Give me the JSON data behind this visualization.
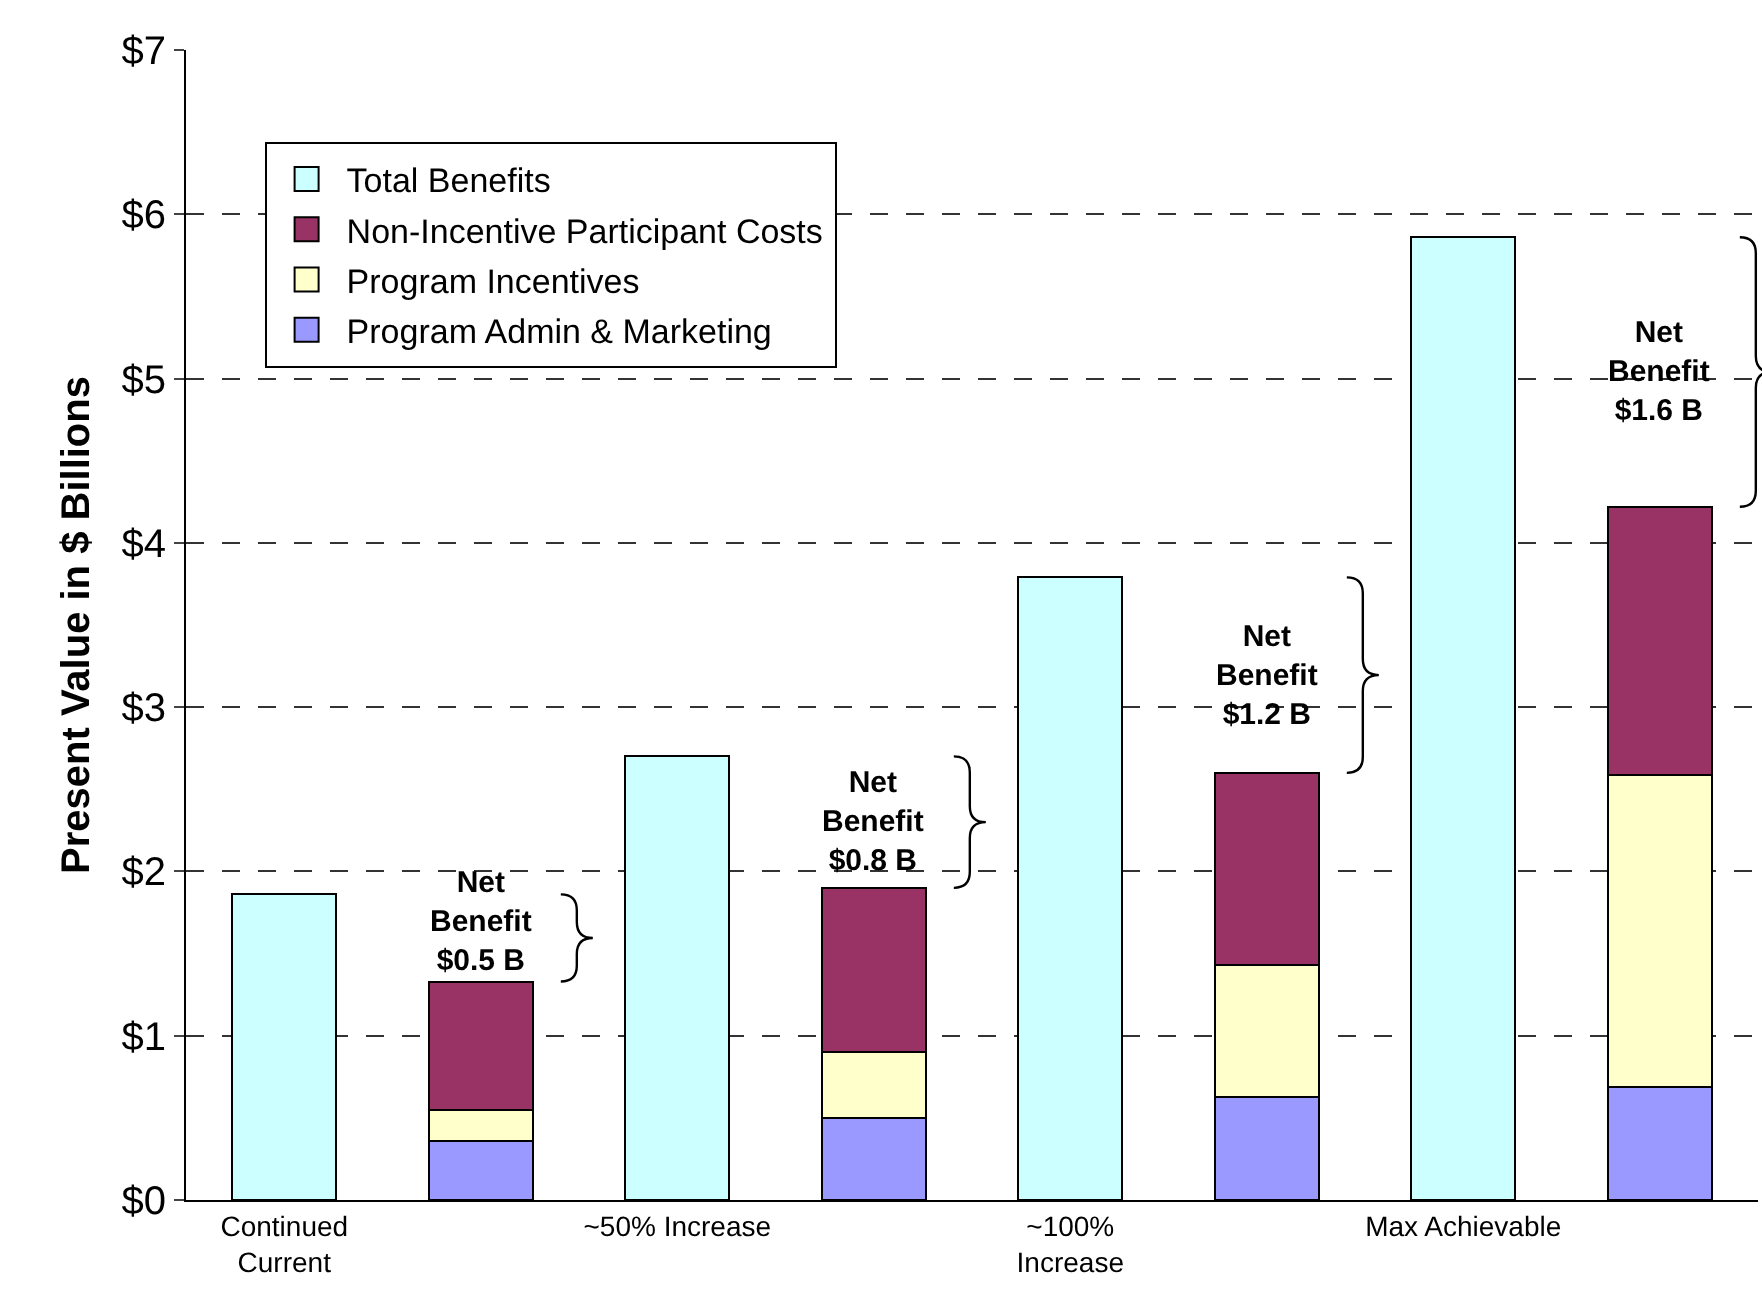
{
  "chart_data": {
    "type": "bar",
    "stacked": true,
    "ylabel": "Present Value in $ Billions",
    "categories": [
      "Continued\nCurrent",
      null,
      "~50% Increase",
      null,
      "~100%\nIncrease",
      null,
      "Max Achievable",
      null
    ],
    "series": [
      {
        "name": "Total Benefits",
        "color": "#ccffff",
        "values": [
          1.86,
          null,
          2.7,
          null,
          3.79,
          null,
          5.86,
          null
        ]
      },
      {
        "name": "Program Admin & Marketing",
        "color": "#9999ff",
        "values": [
          null,
          0.36,
          null,
          0.5,
          null,
          0.63,
          null,
          0.69
        ]
      },
      {
        "name": "Program Incentives",
        "color": "#ffffcc",
        "values": [
          null,
          0.19,
          null,
          0.4,
          null,
          0.8,
          null,
          1.9
        ]
      },
      {
        "name": "Non-Incentive Participant Costs",
        "color": "#993366",
        "values": [
          null,
          0.78,
          null,
          1.0,
          null,
          1.17,
          null,
          1.63
        ]
      }
    ],
    "ylim": [
      0,
      7
    ],
    "yticks": [
      {
        "value": 0,
        "label": "$0"
      },
      {
        "value": 1,
        "label": "$1"
      },
      {
        "value": 2,
        "label": "$2"
      },
      {
        "value": 3,
        "label": "$3"
      },
      {
        "value": 4,
        "label": "$4"
      },
      {
        "value": 5,
        "label": "$5"
      },
      {
        "value": 6,
        "label": "$6"
      },
      {
        "value": 7,
        "label": "$7"
      }
    ],
    "grid": "y",
    "legend": "top left",
    "annotations": [
      "Net\nBenefit\n$0.5 B",
      "Net\nBenefit\n$0.8 B",
      "Net\nBenefit\n$1.2 B",
      "Net\nBenefit\n$1.6 B"
    ]
  }
}
